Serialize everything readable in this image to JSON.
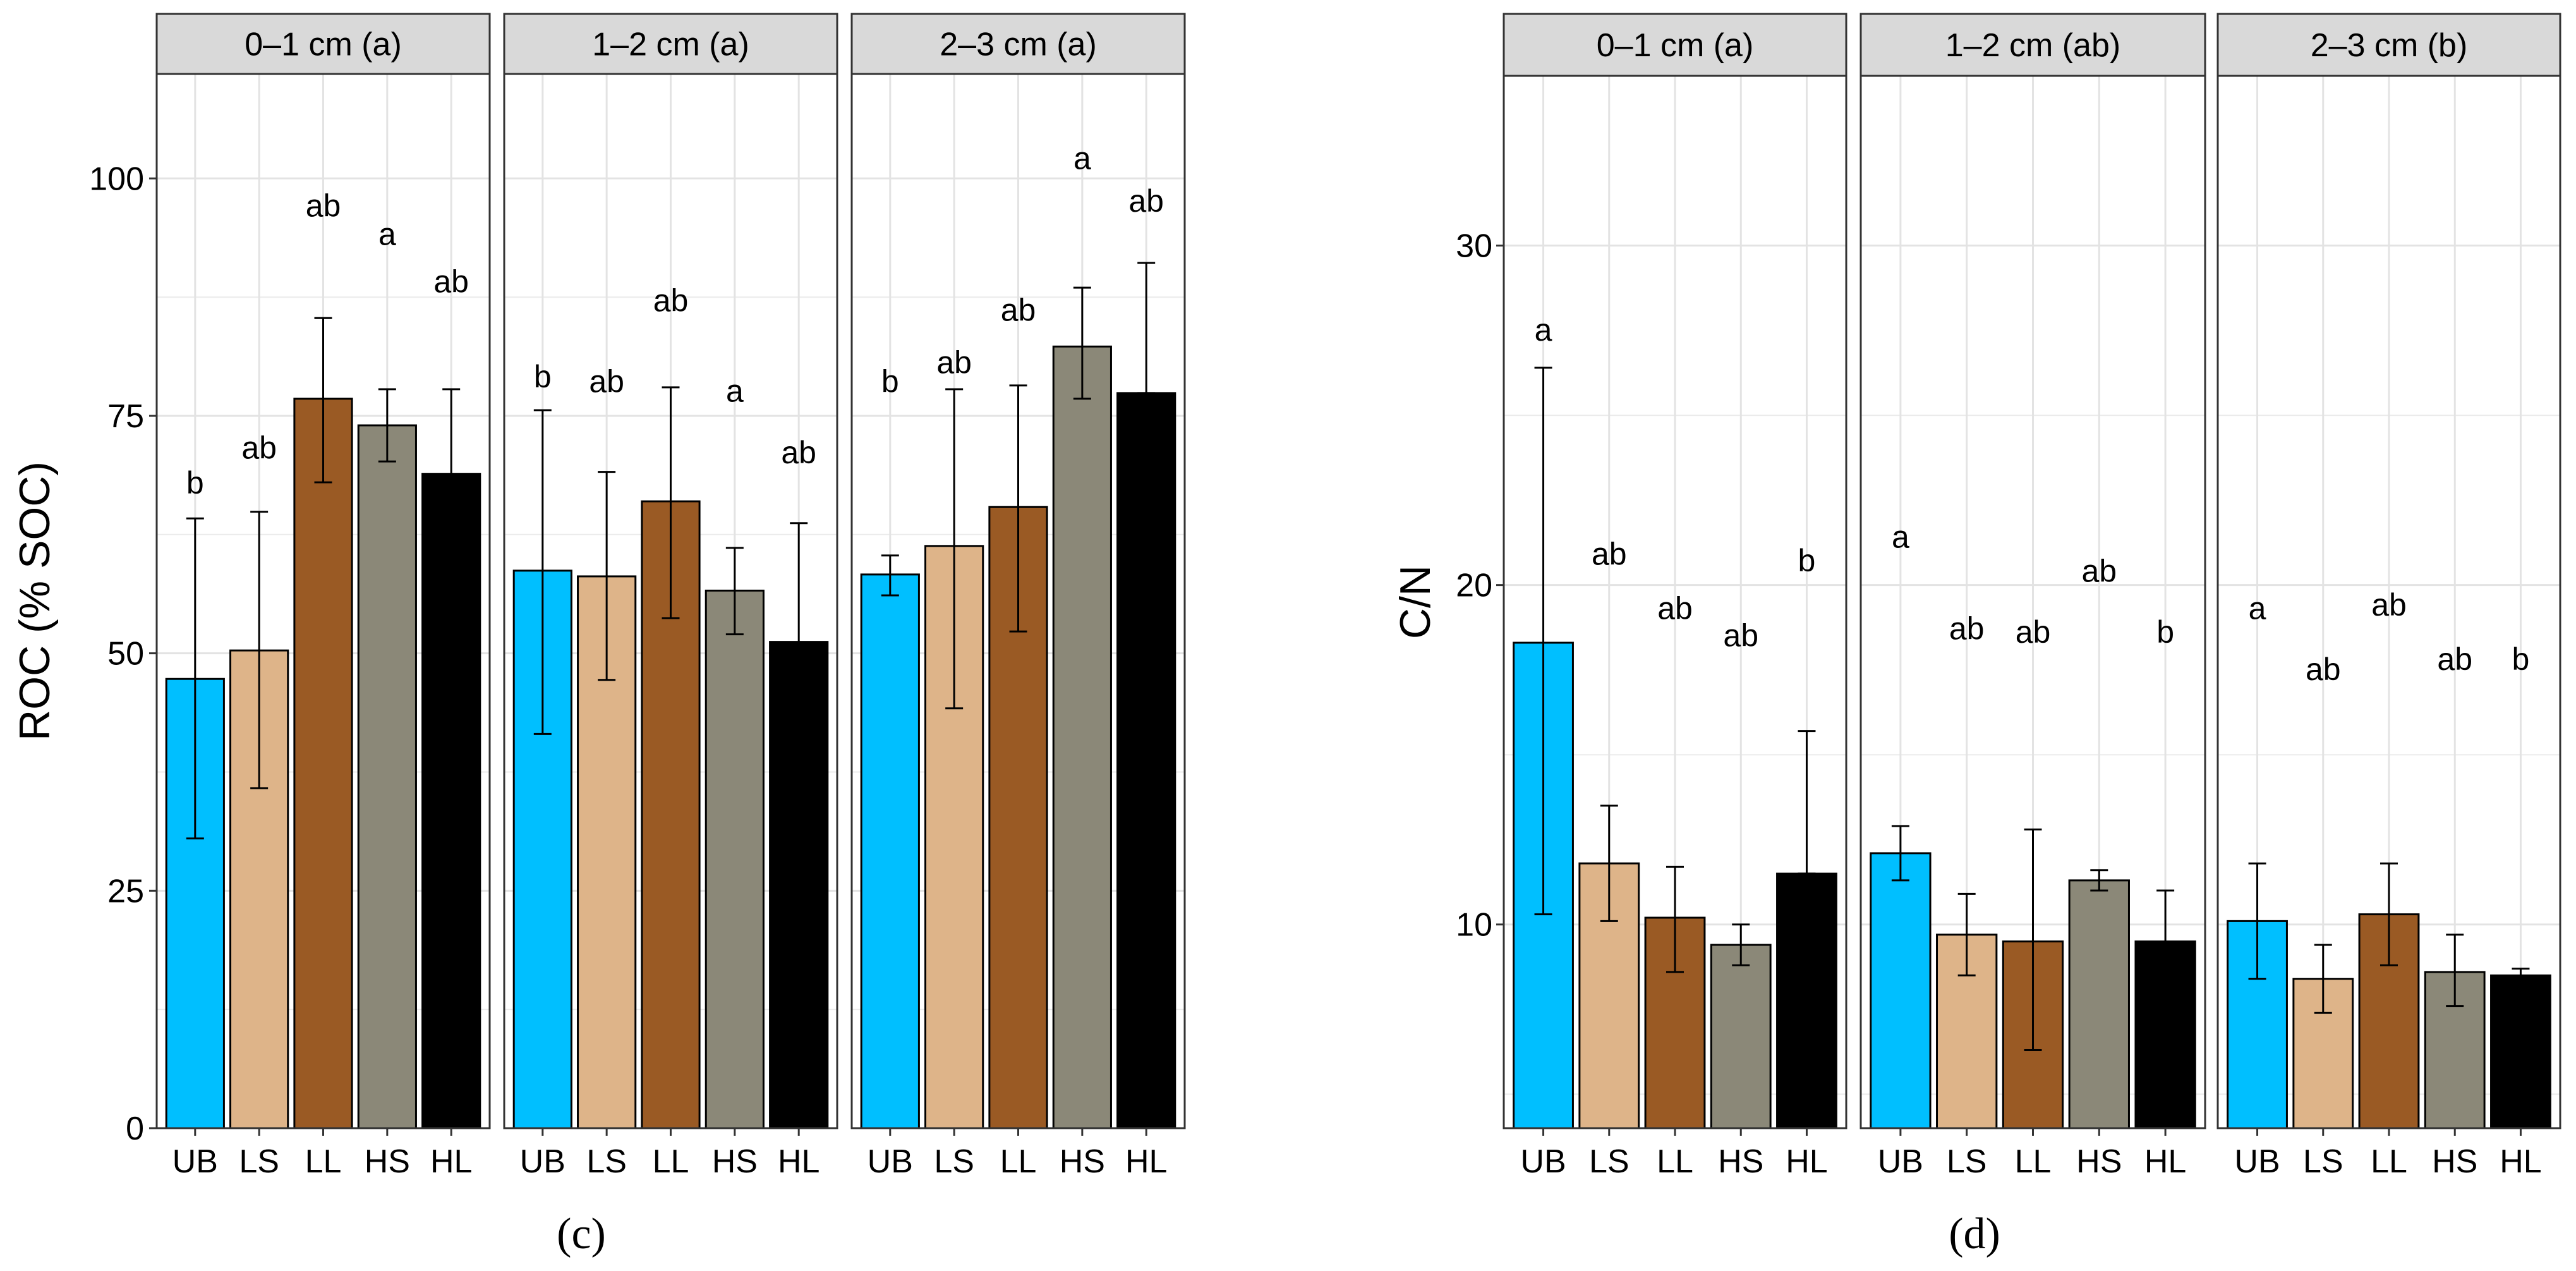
{
  "colors": {
    "UB": "#00BFFF",
    "LS": "#DEB489",
    "LL": "#9A5A24",
    "HS": "#8B8878",
    "HL": "#000000",
    "strip_bg": "#D9D9D9",
    "grid": "#EBEBEB",
    "frame": "#333333"
  },
  "chart_data": [
    {
      "id": "c",
      "type": "bar",
      "caption": "(c)",
      "ylabel": "ROC (% SOC)",
      "ylim": [
        0,
        111
      ],
      "yticks": [
        0,
        25,
        50,
        75,
        100
      ],
      "ytick_labels": [
        "0",
        "25",
        "50",
        "75",
        "100"
      ],
      "categories": [
        "UB",
        "LS",
        "LL",
        "HS",
        "HL"
      ],
      "panels": [
        {
          "strip": "0–1 cm (a)",
          "values": [
            47.3,
            50.3,
            76.8,
            74.0,
            68.9
          ],
          "err_low": [
            30.5,
            35.8,
            68.0,
            70.2,
            60.0
          ],
          "err_high": [
            64.2,
            64.9,
            85.3,
            77.8,
            77.8
          ],
          "sig": [
            "b",
            "ab",
            "ab",
            "a",
            "ab"
          ],
          "sig_y": [
            66.8,
            70.5,
            96.0,
            93.0,
            88.0
          ]
        },
        {
          "strip": "1–2 cm (a)",
          "values": [
            58.7,
            58.1,
            66.0,
            56.6,
            51.2
          ],
          "err_low": [
            41.5,
            47.2,
            53.7,
            52.0,
            38.8
          ],
          "err_high": [
            75.6,
            69.1,
            78.0,
            61.1,
            63.7
          ],
          "sig": [
            "b",
            "ab",
            "ab",
            "a",
            "ab"
          ],
          "sig_y": [
            78.0,
            77.5,
            86.0,
            76.5,
            70.0
          ]
        },
        {
          "strip": "2–3 cm (a)",
          "values": [
            58.3,
            61.3,
            65.4,
            82.3,
            77.4
          ],
          "err_low": [
            56.1,
            44.2,
            52.3,
            76.8,
            77.4
          ],
          "err_high": [
            60.3,
            77.8,
            78.2,
            88.5,
            91.1
          ],
          "sig": [
            "b",
            "ab",
            "ab",
            "a",
            "ab"
          ],
          "sig_y": [
            77.5,
            79.5,
            85.0,
            101.0,
            96.5
          ]
        }
      ]
    },
    {
      "id": "d",
      "type": "bar",
      "caption": "(d)",
      "ylabel": "C/N",
      "ylim": [
        4.0,
        35.0
      ],
      "yticks": [
        10,
        20,
        30
      ],
      "ytick_labels": [
        "10",
        "20",
        "30"
      ],
      "categories": [
        "UB",
        "LS",
        "LL",
        "HS",
        "HL"
      ],
      "panels": [
        {
          "strip": "0–1 cm (a)",
          "values": [
            18.3,
            11.8,
            10.2,
            9.4,
            11.5
          ],
          "err_low": [
            10.3,
            10.1,
            8.6,
            8.8,
            11.5
          ],
          "err_high": [
            26.4,
            13.5,
            11.7,
            10.0,
            15.7
          ],
          "sig": [
            "a",
            "ab",
            "ab",
            "ab",
            "b"
          ],
          "sig_y": [
            27.2,
            20.6,
            19.0,
            18.2,
            20.4
          ]
        },
        {
          "strip": "1–2 cm (ab)",
          "values": [
            12.1,
            9.7,
            9.5,
            11.3,
            9.5
          ],
          "err_low": [
            11.3,
            8.5,
            6.3,
            11.0,
            8.0
          ],
          "err_high": [
            12.9,
            10.9,
            12.8,
            11.6,
            11.0
          ],
          "sig": [
            "a",
            "ab",
            "ab",
            "ab",
            "b"
          ],
          "sig_y": [
            21.1,
            18.4,
            18.3,
            20.1,
            18.3
          ]
        },
        {
          "strip": "2–3 cm (b)",
          "values": [
            10.1,
            8.4,
            10.3,
            8.6,
            8.5
          ],
          "err_low": [
            8.4,
            7.4,
            8.8,
            7.6,
            8.3
          ],
          "err_high": [
            11.8,
            9.4,
            11.8,
            9.7,
            8.7
          ],
          "sig": [
            "a",
            "ab",
            "ab",
            "ab",
            "b"
          ],
          "sig_y": [
            19.0,
            17.2,
            19.1,
            17.5,
            17.5
          ]
        }
      ]
    }
  ]
}
